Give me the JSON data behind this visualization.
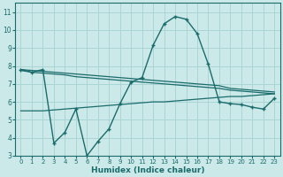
{
  "xlabel": "Humidex (Indice chaleur)",
  "xlim": [
    -0.5,
    23.5
  ],
  "ylim": [
    3,
    11.5
  ],
  "yticks": [
    3,
    4,
    5,
    6,
    7,
    8,
    9,
    10,
    11
  ],
  "xticks": [
    0,
    1,
    2,
    3,
    4,
    5,
    6,
    7,
    8,
    9,
    10,
    11,
    12,
    13,
    14,
    15,
    16,
    17,
    18,
    19,
    20,
    21,
    22,
    23
  ],
  "background_color": "#cce9e9",
  "grid_color": "#aad4d4",
  "line_color": "#1a6b6b",
  "line1_x": [
    0,
    1,
    2,
    3,
    4,
    5,
    6,
    7,
    8,
    9,
    10,
    11,
    12,
    13,
    14,
    15,
    16,
    17,
    18,
    19,
    20,
    21,
    22,
    23
  ],
  "line1_y": [
    7.8,
    7.75,
    7.7,
    7.65,
    7.6,
    7.55,
    7.5,
    7.45,
    7.4,
    7.35,
    7.3,
    7.25,
    7.2,
    7.15,
    7.1,
    7.05,
    7.0,
    6.95,
    6.9,
    6.75,
    6.7,
    6.65,
    6.6,
    6.55
  ],
  "line2_x": [
    0,
    1,
    2,
    3,
    4,
    5,
    6,
    7,
    8,
    9,
    10,
    11,
    12,
    13,
    14,
    15,
    16,
    17,
    18,
    19,
    20,
    21,
    22,
    23
  ],
  "line2_y": [
    7.8,
    7.65,
    7.8,
    3.7,
    4.3,
    5.6,
    3.0,
    3.8,
    4.5,
    5.9,
    7.1,
    7.35,
    9.15,
    10.35,
    10.75,
    10.6,
    9.8,
    8.1,
    6.0,
    5.9,
    5.85,
    5.7,
    5.6,
    6.2
  ],
  "line3_x": [
    0,
    1,
    2,
    3,
    4,
    5,
    6,
    7,
    8,
    9,
    10,
    11,
    12,
    13,
    14,
    15,
    16,
    17,
    18,
    19,
    20,
    21,
    22,
    23
  ],
  "line3_y": [
    7.75,
    7.65,
    7.6,
    7.55,
    7.5,
    7.4,
    7.35,
    7.3,
    7.25,
    7.2,
    7.15,
    7.1,
    7.05,
    7.0,
    6.95,
    6.9,
    6.85,
    6.8,
    6.75,
    6.65,
    6.6,
    6.55,
    6.5,
    6.45
  ],
  "line_lower_x": [
    0,
    1,
    2,
    3,
    4,
    5,
    6,
    7,
    8,
    9,
    10,
    11,
    12,
    13,
    14,
    15,
    16,
    17,
    18,
    19,
    20,
    21,
    22,
    23
  ],
  "line_lower_y": [
    5.5,
    5.5,
    5.5,
    5.55,
    5.6,
    5.65,
    5.7,
    5.75,
    5.8,
    5.85,
    5.9,
    5.95,
    6.0,
    6.0,
    6.05,
    6.1,
    6.15,
    6.2,
    6.25,
    6.3,
    6.3,
    6.35,
    6.4,
    6.45
  ]
}
